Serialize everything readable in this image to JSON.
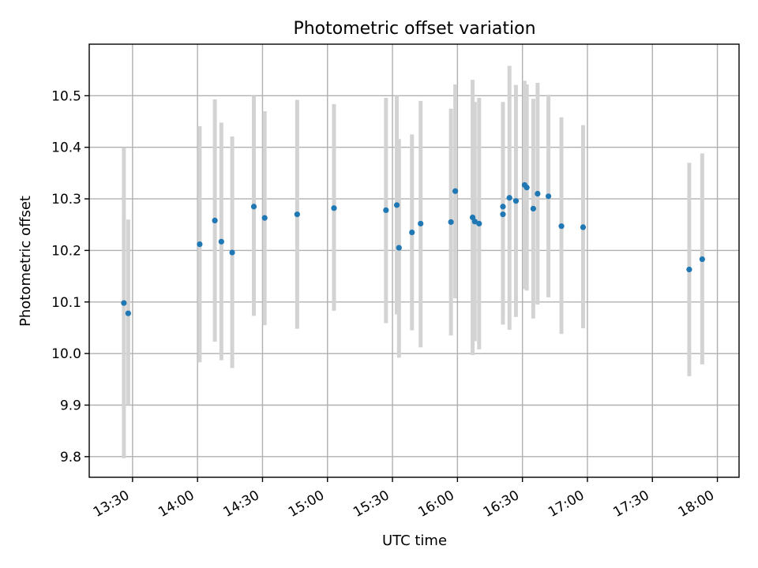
{
  "chart_data": {
    "type": "scatter",
    "title": "Photometric offset variation",
    "xlabel": "UTC time",
    "ylabel": "Photometric offset",
    "x_unit": "time of day (UTC)",
    "xlim": [
      "13:10",
      "18:10"
    ],
    "ylim": [
      9.76,
      10.6
    ],
    "x_ticks": [
      "13:30",
      "14:00",
      "14:30",
      "15:00",
      "15:30",
      "16:00",
      "16:30",
      "17:00",
      "17:30",
      "18:00"
    ],
    "y_ticks": [
      "9.8",
      "9.9",
      "10.0",
      "10.1",
      "10.2",
      "10.3",
      "10.4",
      "10.5"
    ],
    "grid": true,
    "legend": "none",
    "colors": {
      "point": "#1f77b4",
      "error_bar": "#d3d3d3"
    },
    "series": [
      {
        "points": [
          {
            "x": "13:26",
            "y": 10.098,
            "ylow": 9.797,
            "yhigh": 10.4
          },
          {
            "x": "13:28",
            "y": 10.078,
            "ylow": 9.9,
            "yhigh": 10.26
          },
          {
            "x": "14:01",
            "y": 10.212,
            "ylow": 9.983,
            "yhigh": 10.441
          },
          {
            "x": "14:08",
            "y": 10.258,
            "ylow": 10.023,
            "yhigh": 10.493
          },
          {
            "x": "14:11",
            "y": 10.217,
            "ylow": 9.987,
            "yhigh": 10.448
          },
          {
            "x": "14:16",
            "y": 10.196,
            "ylow": 9.972,
            "yhigh": 10.421
          },
          {
            "x": "14:26",
            "y": 10.285,
            "ylow": 10.073,
            "yhigh": 10.5
          },
          {
            "x": "14:31",
            "y": 10.263,
            "ylow": 10.055,
            "yhigh": 10.47
          },
          {
            "x": "14:46",
            "y": 10.27,
            "ylow": 10.048,
            "yhigh": 10.492
          },
          {
            "x": "15:03",
            "y": 10.282,
            "ylow": 10.083,
            "yhigh": 10.484
          },
          {
            "x": "15:27",
            "y": 10.278,
            "ylow": 10.059,
            "yhigh": 10.496
          },
          {
            "x": "15:32",
            "y": 10.288,
            "ylow": 10.076,
            "yhigh": 10.5
          },
          {
            "x": "15:33",
            "y": 10.205,
            "ylow": 9.992,
            "yhigh": 10.416
          },
          {
            "x": "15:39",
            "y": 10.235,
            "ylow": 10.045,
            "yhigh": 10.425
          },
          {
            "x": "15:43",
            "y": 10.252,
            "ylow": 10.012,
            "yhigh": 10.49
          },
          {
            "x": "15:57",
            "y": 10.255,
            "ylow": 10.035,
            "yhigh": 10.475
          },
          {
            "x": "15:59",
            "y": 10.315,
            "ylow": 10.107,
            "yhigh": 10.522
          },
          {
            "x": "16:07",
            "y": 10.264,
            "ylow": 9.997,
            "yhigh": 10.531
          },
          {
            "x": "16:08",
            "y": 10.256,
            "ylow": 10.024,
            "yhigh": 10.488
          },
          {
            "x": "16:10",
            "y": 10.252,
            "ylow": 10.008,
            "yhigh": 10.496
          },
          {
            "x": "16:21",
            "y": 10.285,
            "ylow": 10.082,
            "yhigh": 10.488
          },
          {
            "x": "16:21",
            "y": 10.27,
            "ylow": 10.056,
            "yhigh": 10.484
          },
          {
            "x": "16:24",
            "y": 10.302,
            "ylow": 10.046,
            "yhigh": 10.558
          },
          {
            "x": "16:27",
            "y": 10.296,
            "ylow": 10.071,
            "yhigh": 10.521
          },
          {
            "x": "16:31",
            "y": 10.327,
            "ylow": 10.125,
            "yhigh": 10.529
          },
          {
            "x": "16:32",
            "y": 10.322,
            "ylow": 10.122,
            "yhigh": 10.522
          },
          {
            "x": "16:35",
            "y": 10.281,
            "ylow": 10.068,
            "yhigh": 10.494
          },
          {
            "x": "16:37",
            "y": 10.31,
            "ylow": 10.095,
            "yhigh": 10.525
          },
          {
            "x": "16:42",
            "y": 10.305,
            "ylow": 10.109,
            "yhigh": 10.502
          },
          {
            "x": "16:48",
            "y": 10.247,
            "ylow": 10.038,
            "yhigh": 10.458
          },
          {
            "x": "16:58",
            "y": 10.245,
            "ylow": 10.049,
            "yhigh": 10.443
          },
          {
            "x": "17:47",
            "y": 10.163,
            "ylow": 9.956,
            "yhigh": 10.37
          },
          {
            "x": "17:53",
            "y": 10.183,
            "ylow": 9.979,
            "yhigh": 10.388
          }
        ]
      }
    ]
  }
}
